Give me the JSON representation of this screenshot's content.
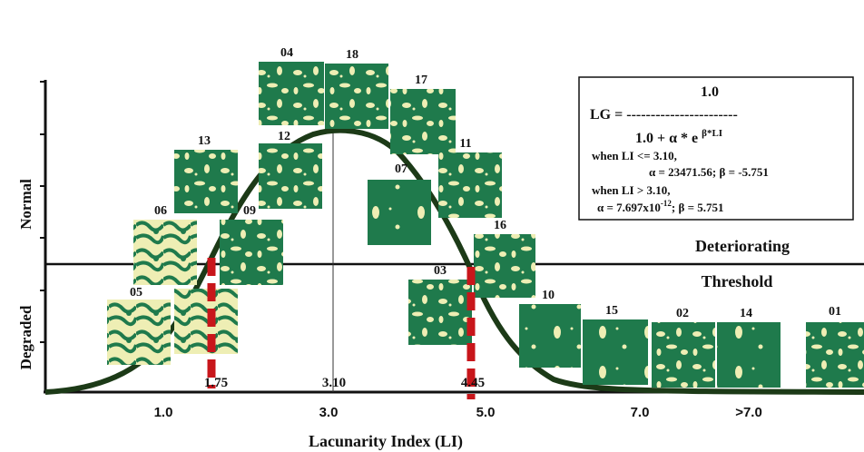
{
  "y_axis": {
    "upper_label": "Normal",
    "lower_label": "Degraded"
  },
  "x_axis": {
    "title": "Lacunarity Index (LI)",
    "tick_labels": [
      "1.0",
      "3.0",
      "5.0",
      "7.0",
      ">7.0"
    ]
  },
  "markers": [
    "1.75",
    "3.10",
    "4.45"
  ],
  "zones": {
    "upper": "Deteriorating",
    "lower": "Threshold"
  },
  "samples": [
    "04",
    "18",
    "17",
    "13",
    "12",
    "11",
    "07",
    "06",
    "09",
    "16",
    "05",
    "03",
    "10",
    "15",
    "02",
    "14",
    "01"
  ],
  "formula": {
    "numerator": "1.0",
    "lhs": "LG = -----------------------",
    "denominator": "1.0 + α * e",
    "exponent": "β*LI",
    "cond1": "when LI <= 3.10,",
    "params1": "α = 23471.56; β = -5.751",
    "cond2": "when LI > 3.10,",
    "params2a": "α = 7.697x10",
    "params2exp": "-12",
    "params2b": "; β = 5.751"
  }
}
